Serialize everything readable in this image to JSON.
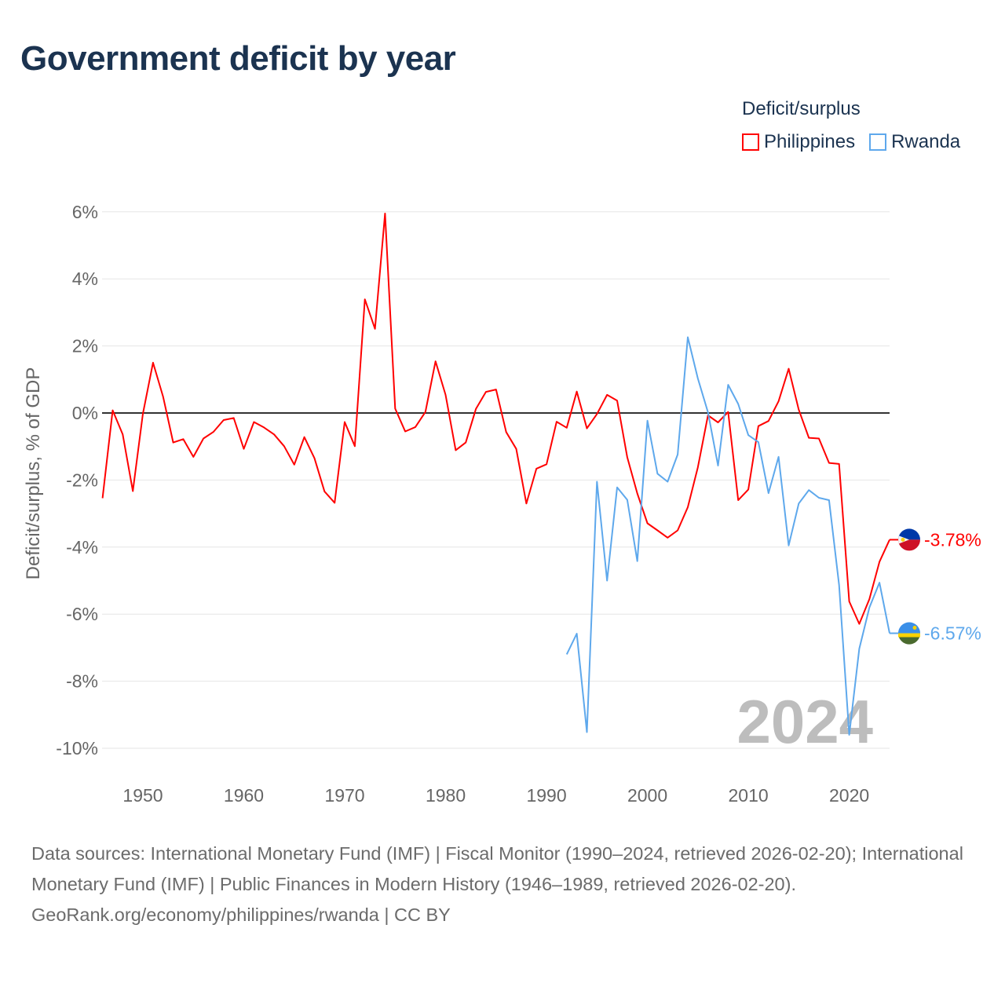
{
  "title": "Government deficit by year",
  "legend": {
    "title": "Deficit/surplus",
    "items": [
      {
        "label": "Philippines",
        "color": "#ff0000"
      },
      {
        "label": "Rwanda",
        "color": "#5ea8ec"
      }
    ]
  },
  "chart_data": {
    "type": "line",
    "title": "Government deficit by year",
    "xlabel": "",
    "ylabel": "Deficit/surplus, % of GDP",
    "xlim": [
      1946,
      2024
    ],
    "ylim": [
      -10,
      6
    ],
    "x_ticks": [
      1950,
      1960,
      1970,
      1980,
      1990,
      2000,
      2010,
      2020
    ],
    "y_ticks": [
      6,
      4,
      2,
      0,
      -2,
      -4,
      -6,
      -8,
      -10
    ],
    "y_tick_labels": [
      "6%",
      "4%",
      "2%",
      "0%",
      "-2%",
      "-4%",
      "-6%",
      "-8%",
      "-10%"
    ],
    "grid": true,
    "legend_position": "top-right",
    "year_watermark": "2024",
    "series": [
      {
        "name": "Philippines",
        "color": "#ff0000",
        "end_label": "-3.78%",
        "start_year": 1946,
        "values": [
          -2.54,
          0.08,
          -0.64,
          -2.33,
          -0.02,
          1.5,
          0.49,
          -0.88,
          -0.78,
          -1.31,
          -0.76,
          -0.56,
          -0.21,
          -0.15,
          -1.07,
          -0.27,
          -0.43,
          -0.64,
          -0.99,
          -1.54,
          -0.72,
          -1.35,
          -2.34,
          -2.68,
          -0.27,
          -0.99,
          3.39,
          2.51,
          5.95,
          0.13,
          -0.55,
          -0.42,
          0.03,
          1.54,
          0.54,
          -1.11,
          -0.88,
          0.12,
          0.63,
          0.7,
          -0.57,
          -1.07,
          -2.7,
          -1.66,
          -1.53,
          -0.26,
          -0.44,
          0.64,
          -0.46,
          -0.03,
          0.54,
          0.37,
          -1.32,
          -2.4,
          -3.29,
          -3.5,
          -3.72,
          -3.5,
          -2.81,
          -1.62,
          -0.07,
          -0.28,
          0.03,
          -2.6,
          -2.28,
          -0.39,
          -0.24,
          0.35,
          1.32,
          0.1,
          -0.74,
          -0.76,
          -1.49,
          -1.52,
          -5.62,
          -6.29,
          -5.55,
          -4.44,
          -3.78
        ]
      },
      {
        "name": "Rwanda",
        "color": "#5ea8ec",
        "end_label": "-6.57%",
        "start_year": 1992,
        "values": [
          -7.2,
          -6.58,
          -9.52,
          -2.05,
          -5.0,
          -2.22,
          -2.59,
          -4.42,
          -0.23,
          -1.81,
          -2.05,
          -1.24,
          2.26,
          1.03,
          0.02,
          -1.57,
          0.84,
          0.27,
          -0.66,
          -0.87,
          -2.39,
          -1.31,
          -3.95,
          -2.7,
          -2.3,
          -2.53,
          -2.6,
          -5.13,
          -9.6,
          -7.03,
          -5.8,
          -5.06,
          -6.57
        ]
      }
    ]
  },
  "footer": {
    "sources": "Data sources: International Monetary Fund (IMF) | Fiscal Monitor (1990–2024, retrieved 2026-02-20); International Monetary Fund (IMF) | Public Finances in Modern History (1946–1989, retrieved 2026-02-20).",
    "credit": "GeoRank.org/economy/philippines/rwanda | CC BY"
  }
}
